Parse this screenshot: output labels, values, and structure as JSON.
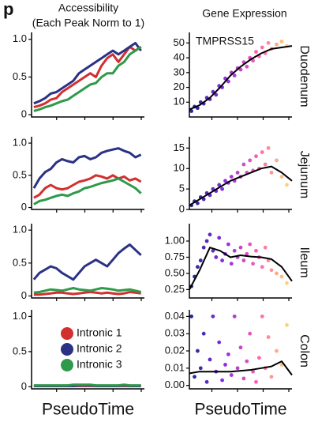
{
  "panel_label": "p",
  "left_header": "Accessibility",
  "left_subheader": "(Each Peak Norm to 1)",
  "right_header": "Gene Expression",
  "chart_data": [
    {
      "type": "line",
      "x": [
        0.02,
        0.07,
        0.12,
        0.17,
        0.22,
        0.27,
        0.32,
        0.37,
        0.42,
        0.47,
        0.52,
        0.57,
        0.62,
        0.67,
        0.72,
        0.77,
        0.82,
        0.87,
        0.92,
        0.97
      ],
      "xlim": [
        0,
        1
      ],
      "ylim": [
        -0.03,
        1.05
      ],
      "yticks": [
        0,
        0.5,
        {
          "value": 1,
          "label": "1.0"
        }
      ],
      "series": [
        {
          "color": "#d32f2f",
          "values": [
            0.1,
            0.12,
            0.15,
            0.2,
            0.22,
            0.3,
            0.35,
            0.4,
            0.45,
            0.5,
            0.55,
            0.5,
            0.65,
            0.75,
            0.8,
            0.7,
            0.8,
            0.9,
            0.85,
            0.9
          ]
        },
        {
          "color": "#2b3284",
          "values": [
            0.15,
            0.18,
            0.22,
            0.28,
            0.3,
            0.35,
            0.4,
            0.45,
            0.55,
            0.6,
            0.65,
            0.7,
            0.75,
            0.8,
            0.85,
            0.8,
            0.85,
            0.9,
            0.95,
            0.85
          ]
        },
        {
          "color": "#2e9a4a",
          "values": [
            0.05,
            0.07,
            0.1,
            0.12,
            0.15,
            0.18,
            0.2,
            0.25,
            0.3,
            0.35,
            0.4,
            0.42,
            0.5,
            0.55,
            0.55,
            0.65,
            0.7,
            0.8,
            0.85,
            0.9
          ]
        }
      ]
    },
    {
      "type": "line",
      "x": [
        0.02,
        0.07,
        0.12,
        0.17,
        0.22,
        0.27,
        0.32,
        0.37,
        0.42,
        0.47,
        0.52,
        0.57,
        0.62,
        0.67,
        0.72,
        0.77,
        0.82,
        0.87,
        0.92,
        0.97
      ],
      "xlim": [
        0,
        1
      ],
      "ylim": [
        -0.03,
        1.05
      ],
      "yticks": [
        0,
        0.5,
        {
          "value": 1,
          "label": "1.0"
        }
      ],
      "series": [
        {
          "color": "#d32f2f",
          "values": [
            0.15,
            0.2,
            0.3,
            0.35,
            0.3,
            0.28,
            0.3,
            0.35,
            0.4,
            0.42,
            0.45,
            0.5,
            0.48,
            0.45,
            0.5,
            0.45,
            0.48,
            0.42,
            0.45,
            0.4
          ]
        },
        {
          "color": "#2b3284",
          "values": [
            0.3,
            0.45,
            0.55,
            0.6,
            0.7,
            0.75,
            0.72,
            0.7,
            0.78,
            0.8,
            0.75,
            0.78,
            0.85,
            0.88,
            0.9,
            0.92,
            0.88,
            0.85,
            0.78,
            0.82
          ]
        },
        {
          "color": "#2e9a4a",
          "values": [
            0.05,
            0.1,
            0.12,
            0.15,
            0.18,
            0.2,
            0.18,
            0.22,
            0.25,
            0.3,
            0.32,
            0.35,
            0.38,
            0.4,
            0.42,
            0.45,
            0.4,
            0.35,
            0.3,
            0.22
          ]
        }
      ]
    },
    {
      "type": "line",
      "x": [
        0.02,
        0.07,
        0.12,
        0.17,
        0.22,
        0.27,
        0.32,
        0.37,
        0.42,
        0.47,
        0.52,
        0.57,
        0.62,
        0.67,
        0.72,
        0.77,
        0.82,
        0.87,
        0.92,
        0.97
      ],
      "xlim": [
        0,
        1
      ],
      "ylim": [
        -0.03,
        1.05
      ],
      "yticks": [
        0,
        0.5,
        {
          "value": 1,
          "label": "1.0"
        }
      ],
      "series": [
        {
          "color": "#d32f2f",
          "values": [
            0.02,
            0.02,
            0.03,
            0.04,
            0.05,
            0.05,
            0.04,
            0.03,
            0.04,
            0.05,
            0.06,
            0.05,
            0.04,
            0.05,
            0.04,
            0.03,
            0.04,
            0.06,
            0.05,
            0.04
          ]
        },
        {
          "color": "#2b3284",
          "values": [
            0.25,
            0.35,
            0.4,
            0.45,
            0.42,
            0.35,
            0.3,
            0.25,
            0.35,
            0.45,
            0.5,
            0.55,
            0.5,
            0.45,
            0.55,
            0.65,
            0.72,
            0.78,
            0.7,
            0.62
          ]
        },
        {
          "color": "#2e9a4a",
          "values": [
            0.05,
            0.06,
            0.08,
            0.1,
            0.09,
            0.08,
            0.1,
            0.12,
            0.1,
            0.09,
            0.08,
            0.1,
            0.12,
            0.11,
            0.1,
            0.08,
            0.09,
            0.1,
            0.08,
            0.06
          ]
        }
      ]
    },
    {
      "type": "line",
      "x": [
        0.02,
        0.07,
        0.12,
        0.17,
        0.22,
        0.27,
        0.32,
        0.37,
        0.42,
        0.47,
        0.52,
        0.57,
        0.62,
        0.67,
        0.72,
        0.77,
        0.82,
        0.87,
        0.92,
        0.97
      ],
      "xlim": [
        0,
        1
      ],
      "ylim": [
        -0.03,
        1.05
      ],
      "yticks": [
        0,
        0.5,
        {
          "value": 1,
          "label": "1.0"
        }
      ],
      "xlabel": "PseudoTime",
      "legend": "center left",
      "series": [
        {
          "name": "Intronic 1",
          "color": "#d32f2f",
          "values": [
            0.01,
            0.01,
            0.01,
            0.01,
            0.01,
            0.01,
            0.01,
            0.01,
            0.01,
            0.01,
            0.01,
            0.01,
            0.01,
            0.01,
            0.01,
            0.01,
            0.01,
            0.01,
            0.01,
            0.01
          ]
        },
        {
          "name": "Intronic 2",
          "color": "#2b3284",
          "values": [
            0.01,
            0.01,
            0.01,
            0.01,
            0.01,
            0.01,
            0.01,
            0.01,
            0.02,
            0.02,
            0.02,
            0.01,
            0.01,
            0.01,
            0.01,
            0.01,
            0.02,
            0.01,
            0.01,
            0.01
          ]
        },
        {
          "name": "Intronic 3",
          "color": "#2e9a4a",
          "values": [
            0.02,
            0.02,
            0.02,
            0.02,
            0.02,
            0.02,
            0.02,
            0.03,
            0.03,
            0.03,
            0.03,
            0.02,
            0.02,
            0.02,
            0.02,
            0.02,
            0.03,
            0.02,
            0.02,
            0.02
          ]
        }
      ]
    },
    {
      "type": "scatter",
      "title": "Duodenum",
      "annotation": "TMPRSS15",
      "xlim": [
        0,
        1
      ],
      "ylim": [
        0,
        55
      ],
      "yticks": [
        10,
        20,
        30,
        40,
        50
      ],
      "colormap": [
        "#1a2a8c",
        "#8a2be2",
        "#ff5fb4",
        "#ffe56a"
      ],
      "x": [
        0.02,
        0.05,
        0.08,
        0.11,
        0.14,
        0.17,
        0.2,
        0.23,
        0.26,
        0.29,
        0.32,
        0.35,
        0.38,
        0.41,
        0.44,
        0.47,
        0.5,
        0.53,
        0.56,
        0.59,
        0.62,
        0.65,
        0.68,
        0.71,
        0.74,
        0.77,
        0.8,
        0.85,
        0.9,
        0.95
      ],
      "values": [
        4,
        7,
        6,
        10,
        9,
        13,
        12,
        17,
        15,
        21,
        20,
        26,
        24,
        30,
        28,
        33,
        32,
        37,
        34,
        40,
        38,
        44,
        41,
        47,
        43,
        50,
        46,
        49,
        51,
        48
      ],
      "trend": {
        "color": "#000000",
        "x": [
          0,
          0.1,
          0.2,
          0.3,
          0.4,
          0.5,
          0.6,
          0.7,
          0.8,
          0.9,
          1
        ],
        "values": [
          5,
          8,
          13,
          20,
          28,
          34,
          39,
          43,
          46,
          47,
          48
        ]
      }
    },
    {
      "type": "scatter",
      "title": "Jejunum",
      "xlim": [
        0,
        1
      ],
      "ylim": [
        0,
        17
      ],
      "yticks": [
        0,
        5,
        10,
        15
      ],
      "colormap": [
        "#1a2a8c",
        "#8a2be2",
        "#ff5fb4",
        "#ffe56a"
      ],
      "x": [
        0.02,
        0.05,
        0.08,
        0.11,
        0.14,
        0.17,
        0.2,
        0.23,
        0.26,
        0.29,
        0.32,
        0.35,
        0.38,
        0.41,
        0.44,
        0.47,
        0.5,
        0.53,
        0.56,
        0.59,
        0.62,
        0.65,
        0.68,
        0.71,
        0.74,
        0.77,
        0.8,
        0.85,
        0.9,
        0.95
      ],
      "values": [
        1,
        2,
        1.5,
        3,
        2.5,
        4,
        3.5,
        5,
        4.5,
        6,
        5,
        7,
        6.5,
        8,
        7,
        9,
        8,
        11,
        9,
        12,
        9.5,
        13,
        10,
        14,
        11,
        15,
        9,
        12,
        8,
        6
      ],
      "trend": {
        "color": "#000000",
        "x": [
          0,
          0.1,
          0.2,
          0.3,
          0.4,
          0.5,
          0.6,
          0.7,
          0.8,
          0.9,
          1
        ],
        "values": [
          1,
          2.5,
          4,
          5.5,
          7,
          8,
          9,
          10,
          10.5,
          9,
          7
        ]
      }
    },
    {
      "type": "scatter",
      "title": "Ileum",
      "xlim": [
        0,
        1
      ],
      "ylim": [
        0.12,
        1.22
      ],
      "yticks": [
        0.25,
        {
          "value": 0.5,
          "label": "0.50"
        },
        0.75,
        {
          "value": 1,
          "label": "1.00"
        }
      ],
      "colormap": [
        "#1a2a8c",
        "#8a2be2",
        "#ff5fb4",
        "#ffe56a"
      ],
      "x": [
        0.02,
        0.05,
        0.08,
        0.11,
        0.14,
        0.17,
        0.2,
        0.23,
        0.26,
        0.29,
        0.32,
        0.35,
        0.38,
        0.41,
        0.44,
        0.47,
        0.5,
        0.53,
        0.56,
        0.59,
        0.62,
        0.65,
        0.68,
        0.71,
        0.74,
        0.77,
        0.8,
        0.85,
        0.9,
        0.95
      ],
      "values": [
        0.3,
        0.45,
        0.6,
        0.7,
        0.9,
        1.0,
        1.1,
        0.85,
        0.75,
        1.05,
        0.7,
        0.8,
        0.95,
        0.65,
        0.85,
        0.75,
        0.9,
        0.7,
        0.8,
        0.95,
        0.65,
        0.85,
        0.75,
        0.6,
        0.9,
        0.7,
        0.55,
        0.5,
        0.45,
        0.35
      ],
      "trend": {
        "color": "#000000",
        "x": [
          0,
          0.1,
          0.2,
          0.3,
          0.4,
          0.5,
          0.6,
          0.7,
          0.8,
          0.9,
          1
        ],
        "values": [
          0.25,
          0.55,
          0.9,
          0.85,
          0.75,
          0.78,
          0.76,
          0.75,
          0.72,
          0.6,
          0.38
        ]
      }
    },
    {
      "type": "scatter",
      "title": "Colon",
      "xlabel": "PseudoTime",
      "xlim": [
        0,
        1
      ],
      "ylim": [
        -0.002,
        0.042
      ],
      "yticks": [
        {
          "value": 0,
          "label": "0.00"
        },
        0.01,
        0.02,
        0.03,
        0.04
      ],
      "colormap": [
        "#1a2a8c",
        "#8a2be2",
        "#ff5fb4",
        "#ffe56a"
      ],
      "x": [
        0.02,
        0.05,
        0.08,
        0.11,
        0.14,
        0.17,
        0.2,
        0.23,
        0.26,
        0.29,
        0.32,
        0.35,
        0.38,
        0.41,
        0.44,
        0.47,
        0.5,
        0.53,
        0.56,
        0.59,
        0.62,
        0.65,
        0.68,
        0.71,
        0.74,
        0.77,
        0.8,
        0.85,
        0.9,
        0.95
      ],
      "values": [
        0.04,
        0.005,
        0.02,
        0.01,
        0.03,
        0.002,
        0.015,
        0.04,
        0.008,
        0.025,
        0.003,
        0.012,
        0.018,
        0.006,
        0.04,
        0.01,
        0.022,
        0.004,
        0.014,
        0.03,
        0.008,
        0.002,
        0.016,
        0.04,
        0.01,
        0.028,
        0.005,
        0.02,
        0.012,
        0.035
      ],
      "trend": {
        "color": "#000000",
        "x": [
          0,
          0.1,
          0.2,
          0.3,
          0.4,
          0.5,
          0.6,
          0.7,
          0.8,
          0.9,
          1
        ],
        "values": [
          0.007,
          0.008,
          0.008,
          0.008,
          0.008,
          0.0085,
          0.009,
          0.01,
          0.011,
          0.014,
          0.006
        ]
      }
    }
  ]
}
